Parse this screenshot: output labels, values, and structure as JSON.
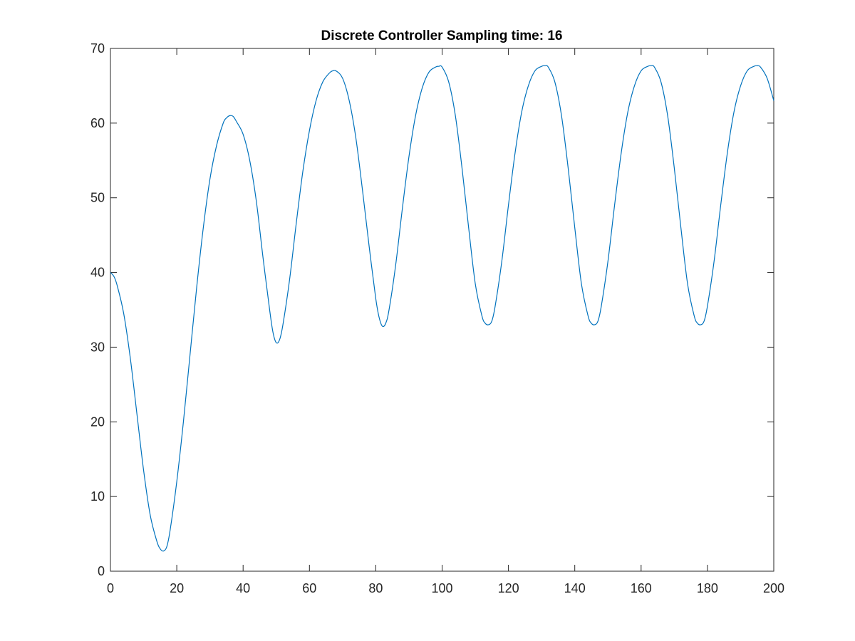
{
  "chart_data": {
    "type": "line",
    "title": "Discrete Controller Sampling time: 16",
    "xlabel": "",
    "ylabel": "",
    "xlim": [
      0,
      200
    ],
    "ylim": [
      0,
      70
    ],
    "xticks": [
      0,
      20,
      40,
      60,
      80,
      100,
      120,
      140,
      160,
      180,
      200
    ],
    "yticks": [
      0,
      10,
      20,
      30,
      40,
      50,
      60,
      70
    ],
    "xtick_labels": [
      "0",
      "20",
      "40",
      "60",
      "80",
      "100",
      "120",
      "140",
      "160",
      "180",
      "200"
    ],
    "ytick_labels": [
      "0",
      "10",
      "20",
      "30",
      "40",
      "50",
      "60",
      "70"
    ],
    "grid": false,
    "series": [
      {
        "color": "#0072BD",
        "points": [
          [
            0,
            40
          ],
          [
            1,
            39.5
          ],
          [
            2,
            38.3
          ],
          [
            4,
            34.5
          ],
          [
            6,
            28.5
          ],
          [
            8,
            21
          ],
          [
            10,
            13.5
          ],
          [
            12,
            7.5
          ],
          [
            14,
            4.0
          ],
          [
            15,
            3.0
          ],
          [
            16,
            2.7
          ],
          [
            17,
            3.3
          ],
          [
            18,
            5.5
          ],
          [
            20,
            12
          ],
          [
            22,
            20
          ],
          [
            24,
            29
          ],
          [
            26,
            38
          ],
          [
            28,
            46
          ],
          [
            30,
            52.5
          ],
          [
            32,
            57
          ],
          [
            34,
            60
          ],
          [
            35,
            60.7
          ],
          [
            36,
            61.0
          ],
          [
            37,
            60.9
          ],
          [
            38,
            60.2
          ],
          [
            40,
            58.5
          ],
          [
            42,
            55
          ],
          [
            44,
            49.5
          ],
          [
            46,
            42
          ],
          [
            48,
            35
          ],
          [
            49,
            32
          ],
          [
            50,
            30.6
          ],
          [
            51,
            31
          ],
          [
            52,
            33
          ],
          [
            54,
            39
          ],
          [
            56,
            46.5
          ],
          [
            58,
            53.5
          ],
          [
            60,
            59
          ],
          [
            62,
            63
          ],
          [
            64,
            65.5
          ],
          [
            66,
            66.7
          ],
          [
            67,
            67.0
          ],
          [
            68,
            67.0
          ],
          [
            70,
            66
          ],
          [
            72,
            63
          ],
          [
            74,
            58
          ],
          [
            76,
            51
          ],
          [
            78,
            43.5
          ],
          [
            80,
            36.5
          ],
          [
            81,
            34
          ],
          [
            82,
            32.8
          ],
          [
            83,
            33.2
          ],
          [
            84,
            35
          ],
          [
            86,
            41
          ],
          [
            88,
            48.5
          ],
          [
            90,
            55.5
          ],
          [
            92,
            61
          ],
          [
            94,
            64.7
          ],
          [
            96,
            66.8
          ],
          [
            98,
            67.5
          ],
          [
            99,
            67.6
          ],
          [
            100,
            67.5
          ],
          [
            102,
            65.5
          ],
          [
            104,
            61
          ],
          [
            106,
            54
          ],
          [
            108,
            46
          ],
          [
            110,
            38.5
          ],
          [
            112,
            34.2
          ],
          [
            113,
            33.2
          ],
          [
            114,
            33.0
          ],
          [
            115,
            33.5
          ],
          [
            116,
            35.5
          ],
          [
            118,
            41.5
          ],
          [
            120,
            49
          ],
          [
            122,
            56
          ],
          [
            124,
            61.5
          ],
          [
            126,
            65
          ],
          [
            128,
            67
          ],
          [
            130,
            67.6
          ],
          [
            131,
            67.7
          ],
          [
            132,
            67.5
          ],
          [
            134,
            65.5
          ],
          [
            136,
            61
          ],
          [
            138,
            54
          ],
          [
            140,
            46
          ],
          [
            142,
            38.5
          ],
          [
            144,
            34.2
          ],
          [
            145,
            33.2
          ],
          [
            146,
            33.0
          ],
          [
            147,
            33.5
          ],
          [
            148,
            35.5
          ],
          [
            150,
            41.5
          ],
          [
            152,
            49
          ],
          [
            154,
            56
          ],
          [
            156,
            61.5
          ],
          [
            158,
            65
          ],
          [
            160,
            67
          ],
          [
            162,
            67.6
          ],
          [
            163,
            67.7
          ],
          [
            164,
            67.5
          ],
          [
            166,
            65.5
          ],
          [
            168,
            61
          ],
          [
            170,
            54
          ],
          [
            172,
            46
          ],
          [
            174,
            38.5
          ],
          [
            176,
            34.2
          ],
          [
            177,
            33.2
          ],
          [
            178,
            33.0
          ],
          [
            179,
            33.5
          ],
          [
            180,
            35.5
          ],
          [
            182,
            41.5
          ],
          [
            184,
            49
          ],
          [
            186,
            56
          ],
          [
            188,
            61.5
          ],
          [
            190,
            65
          ],
          [
            192,
            67
          ],
          [
            194,
            67.6
          ],
          [
            195,
            67.7
          ],
          [
            196,
            67.5
          ],
          [
            198,
            66
          ],
          [
            200,
            63
          ]
        ]
      }
    ]
  }
}
